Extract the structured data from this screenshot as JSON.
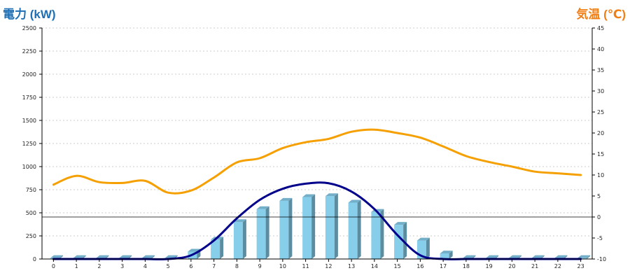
{
  "chart_data": {
    "type": "bar+line",
    "left_axis_title": "電力 (kW)",
    "right_axis_title": "気温 (℃)",
    "categories": [
      "0",
      "1",
      "2",
      "3",
      "4",
      "5",
      "6",
      "7",
      "8",
      "9",
      "10",
      "11",
      "12",
      "13",
      "14",
      "15",
      "16",
      "17",
      "18",
      "19",
      "20",
      "21",
      "22",
      "23"
    ],
    "y_left": {
      "min": 0,
      "max": 2500,
      "ticks": [
        0,
        250,
        500,
        750,
        1000,
        1250,
        1500,
        1750,
        2000,
        2250,
        2500
      ]
    },
    "y_right": {
      "min": -10,
      "max": 45,
      "ticks": [
        -10,
        -5,
        0,
        5,
        10,
        15,
        20,
        25,
        30,
        35,
        40,
        45
      ]
    },
    "grid": true,
    "series": [
      {
        "kind": "bar",
        "axis": "left",
        "color": "#87ceeb",
        "values": [
          10,
          10,
          10,
          10,
          10,
          10,
          80,
          210,
          400,
          540,
          630,
          670,
          680,
          610,
          510,
          370,
          200,
          60,
          10,
          10,
          10,
          10,
          10,
          10
        ]
      },
      {
        "kind": "line",
        "axis": "left",
        "color": "#00008b",
        "values": [
          0,
          0,
          0,
          0,
          0,
          0,
          40,
          200,
          440,
          640,
          760,
          815,
          820,
          730,
          540,
          260,
          40,
          0,
          0,
          0,
          0,
          0,
          0,
          0
        ]
      },
      {
        "kind": "line",
        "axis": "right",
        "color": "#f5a000",
        "values": [
          7.7,
          9.8,
          8.3,
          8.1,
          8.6,
          5.8,
          6.3,
          9.4,
          13.0,
          14.0,
          16.4,
          17.8,
          18.6,
          20.3,
          20.8,
          20.0,
          18.9,
          16.8,
          14.5,
          13.1,
          12.0,
          10.8,
          10.4,
          10.0
        ]
      }
    ]
  }
}
